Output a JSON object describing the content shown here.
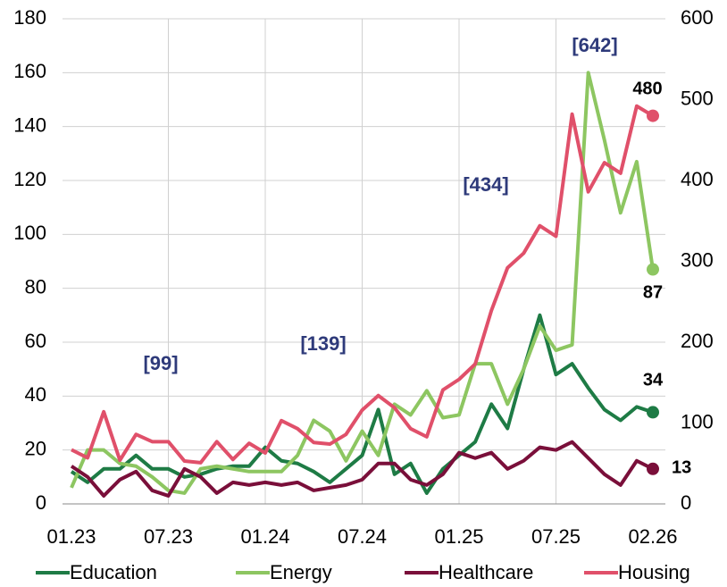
{
  "chart_data": {
    "type": "line",
    "categories": [
      "01.23",
      null,
      null,
      null,
      null,
      null,
      "07.23",
      null,
      null,
      null,
      null,
      null,
      "01.24",
      null,
      null,
      null,
      null,
      null,
      "07.24",
      null,
      null,
      null,
      null,
      null,
      "01.25",
      null,
      null,
      null,
      null,
      null,
      "07.25",
      null,
      null,
      null,
      null,
      null,
      "02.26"
    ],
    "series": [
      {
        "name": "Education",
        "color": "#1e7b45",
        "axis": "y",
        "values": [
          12,
          8,
          13,
          13,
          18,
          13,
          13,
          10,
          11,
          13,
          14,
          14,
          21,
          16,
          15,
          12,
          8,
          13,
          18,
          35,
          11,
          15,
          4,
          13,
          18,
          23,
          37,
          28,
          50,
          70,
          48,
          52,
          43,
          35,
          31,
          36,
          34
        ]
      },
      {
        "name": "Energy",
        "color": "#8dc661",
        "axis": "y",
        "values": [
          6,
          20,
          20,
          15,
          14,
          10,
          5,
          4,
          13,
          14,
          13,
          12,
          12,
          12,
          18,
          31,
          27,
          16,
          27,
          18,
          37,
          33,
          42,
          32,
          33,
          52,
          52,
          37,
          50,
          66,
          57,
          59,
          160,
          135,
          108,
          127,
          87
        ]
      },
      {
        "name": "Healthcare",
        "color": "#7a0f3a",
        "axis": "y",
        "values": [
          14,
          10,
          3,
          9,
          12,
          5,
          3,
          13,
          10,
          4,
          8,
          7,
          8,
          7,
          8,
          5,
          6,
          7,
          9,
          15,
          15,
          9,
          7,
          11,
          19,
          17,
          19,
          13,
          16,
          21,
          20,
          23,
          17,
          11,
          7,
          16,
          13
        ]
      },
      {
        "name": "Housing",
        "color": "#e0506a",
        "axis": "y2",
        "values": [
          67,
          57,
          114,
          54,
          86,
          77,
          77,
          53,
          51,
          77,
          55,
          75,
          63,
          103,
          93,
          76,
          74,
          86,
          116,
          134,
          119,
          93,
          83,
          141,
          154,
          173,
          239,
          292,
          310,
          344,
          331,
          482,
          386,
          422,
          409,
          492,
          480
        ]
      }
    ],
    "annotations": [
      "[99]",
      "[139]",
      "[434]",
      "[642]"
    ],
    "ylim": [
      0,
      180
    ],
    "yticks": [
      0,
      20,
      40,
      60,
      80,
      100,
      120,
      140,
      160,
      180
    ],
    "y2lim": [
      0,
      600
    ],
    "y2ticks": [
      0,
      100,
      200,
      300,
      400,
      500,
      600
    ],
    "grid": true,
    "legend": "bottom"
  }
}
